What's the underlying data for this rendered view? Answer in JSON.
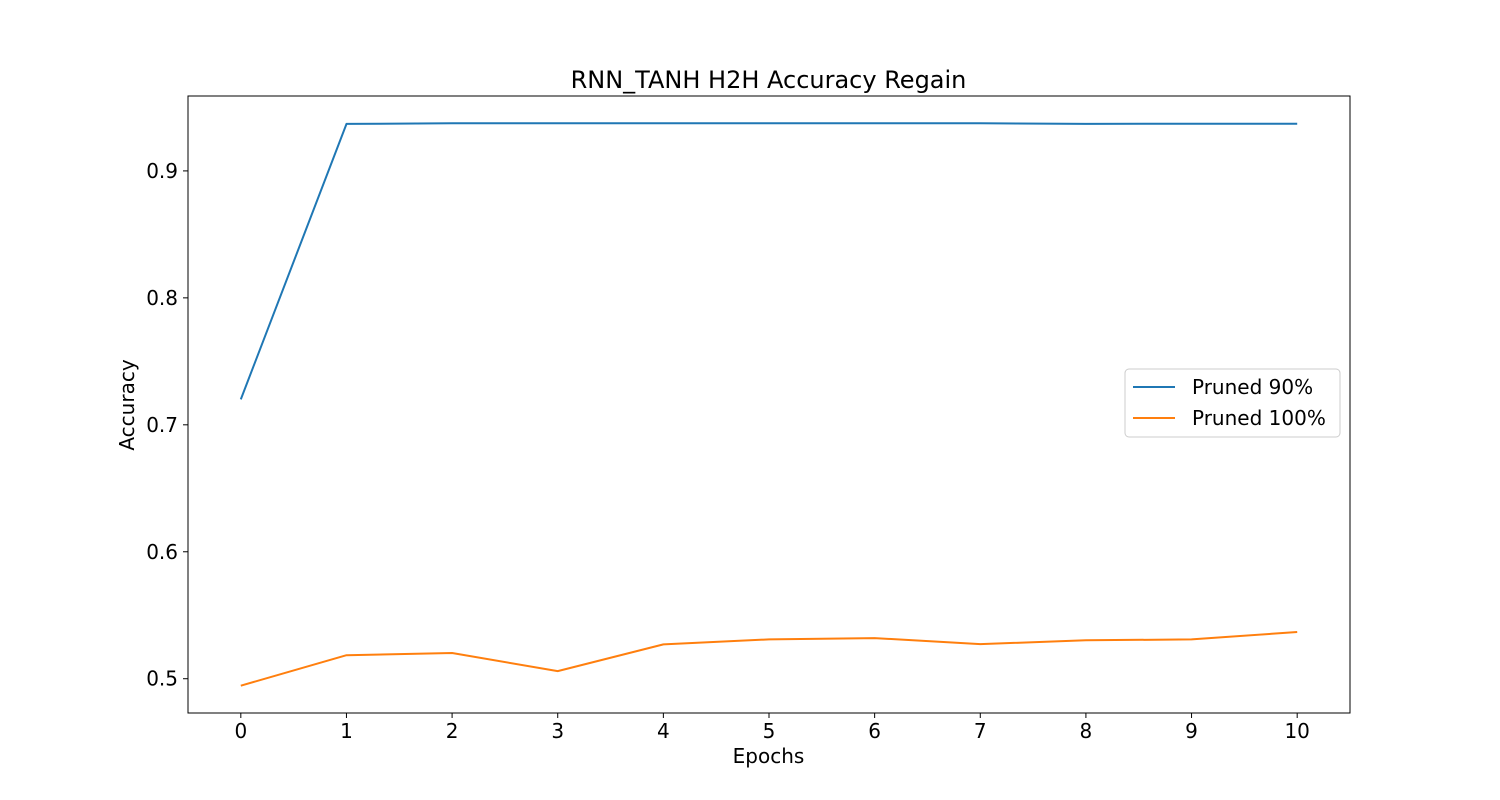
{
  "chart_data": {
    "type": "line",
    "title": "RNN_TANH H2H Accuracy Regain",
    "xlabel": "Epochs",
    "ylabel": "Accuracy",
    "x": [
      0,
      1,
      2,
      3,
      4,
      5,
      6,
      7,
      8,
      9,
      10
    ],
    "xticks": [
      "0",
      "1",
      "2",
      "3",
      "4",
      "5",
      "6",
      "7",
      "8",
      "9",
      "10"
    ],
    "yticks": [
      "0.5",
      "0.6",
      "0.7",
      "0.8",
      "0.9"
    ],
    "xlim": [
      -0.5,
      10.5
    ],
    "ylim": [
      0.473,
      0.959
    ],
    "grid": false,
    "legend_position": "center-right",
    "series": [
      {
        "name": "Pruned 90%",
        "color": "#1f77b4",
        "values": [
          0.72,
          0.937,
          0.9375,
          0.9375,
          0.9375,
          0.9375,
          0.9375,
          0.9375,
          0.937,
          0.9372,
          0.9372
        ]
      },
      {
        "name": "Pruned 100%",
        "color": "#ff7f0e",
        "values": [
          0.4945,
          0.5185,
          0.5203,
          0.506,
          0.527,
          0.531,
          0.532,
          0.5273,
          0.5303,
          0.531,
          0.5368
        ]
      }
    ]
  }
}
